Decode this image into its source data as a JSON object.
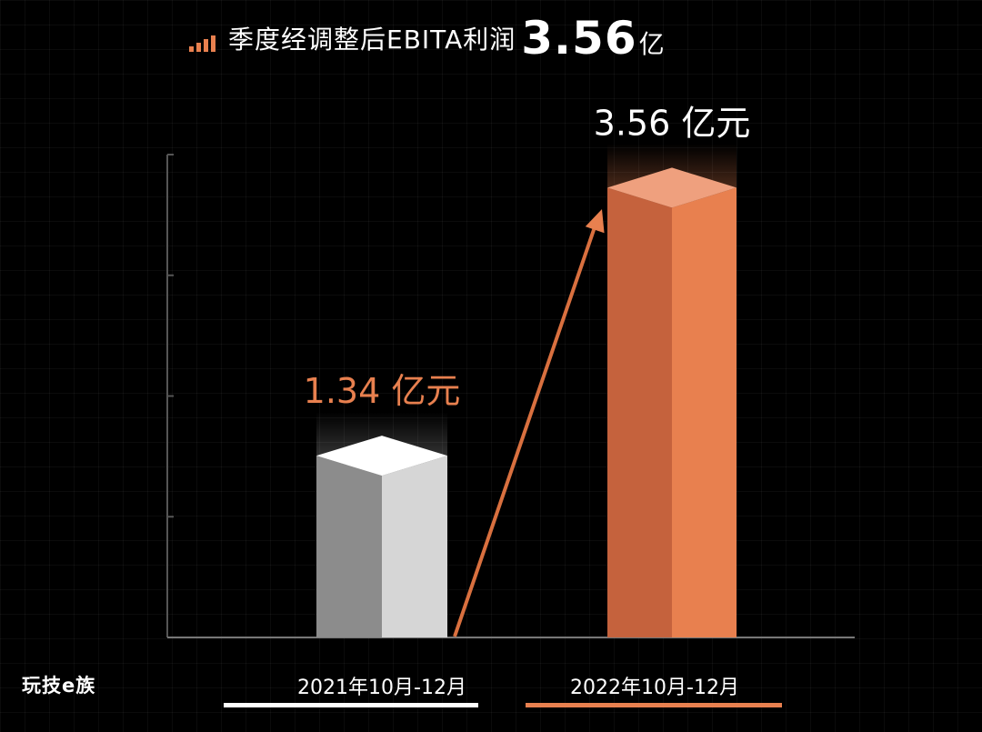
{
  "header": {
    "title": "季度经调整后EBITA利润",
    "value": "3.56",
    "unit": "亿"
  },
  "watermark": "玩技e族",
  "colors": {
    "background": "#000000",
    "accent": "#e8804f",
    "bar_old_light": "#d6d6d6",
    "bar_old_dark": "#8c8c8c",
    "bar_new_light": "#e8804f",
    "bar_new_dark": "#c5623d"
  },
  "chart_data": {
    "type": "bar",
    "categories": [
      "2021年10月-12月",
      "2022年10月-12月"
    ],
    "values": [
      1.34,
      3.56
    ],
    "value_labels": [
      "1.34 亿元",
      "3.56 亿元"
    ],
    "title": "季度经调整后EBITA利润3.56亿",
    "xlabel": "",
    "ylabel": "",
    "ylim": [
      0,
      4
    ],
    "grid": false,
    "legend": "none"
  }
}
